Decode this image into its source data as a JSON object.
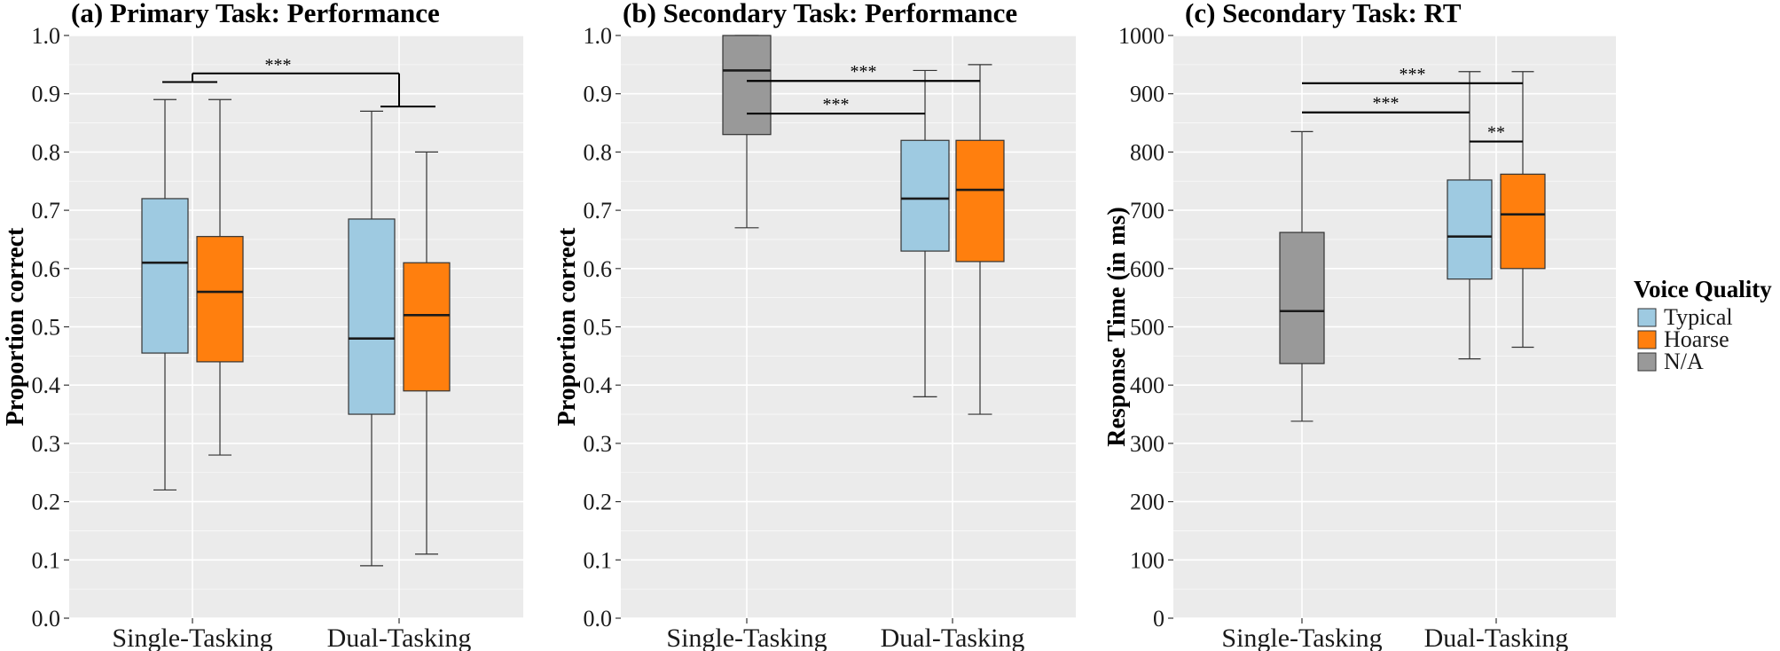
{
  "colors": {
    "Typical": "#9ecae1",
    "Hoarse": "#ff7f0e",
    "N/A": "#999999",
    "panel_bg": "#ebebeb",
    "grid": "#ffffff"
  },
  "legend": {
    "title": "Voice Quality",
    "items": [
      {
        "label": "Typical",
        "key": "Typical"
      },
      {
        "label": "Hoarse",
        "key": "Hoarse"
      },
      {
        "label": "N/A",
        "key": "N/A"
      }
    ],
    "position": "right"
  },
  "chart_data": [
    {
      "type": "boxplot",
      "title": "(a) Primary Task: Performance",
      "ylabel": "Proportion correct",
      "xlabel": "",
      "ylim": [
        0,
        1.0
      ],
      "yticks": [
        "0.0",
        "0.1",
        "0.2",
        "0.3",
        "0.4",
        "0.5",
        "0.6",
        "0.7",
        "0.8",
        "0.9",
        "1.0"
      ],
      "categories": [
        "Single-Tasking",
        "Dual-Tasking"
      ],
      "boxes": [
        {
          "category": "Single-Tasking",
          "group": "Typical",
          "min": 0.22,
          "q1": 0.455,
          "median": 0.61,
          "q3": 0.72,
          "max": 0.89
        },
        {
          "category": "Single-Tasking",
          "group": "Hoarse",
          "min": 0.28,
          "q1": 0.44,
          "median": 0.56,
          "q3": 0.655,
          "max": 0.89
        },
        {
          "category": "Dual-Tasking",
          "group": "Typical",
          "min": 0.09,
          "q1": 0.35,
          "median": 0.48,
          "q3": 0.685,
          "max": 0.87
        },
        {
          "category": "Dual-Tasking",
          "group": "Hoarse",
          "min": 0.11,
          "q1": 0.39,
          "median": 0.52,
          "q3": 0.61,
          "max": 0.8
        }
      ],
      "significance": [
        {
          "label": "***",
          "type": "bracket",
          "from_category": "Single-Tasking",
          "to_category": "Dual-Tasking",
          "y": 0.935,
          "from_leg_y": 0.92,
          "to_leg_y": 0.878
        }
      ]
    },
    {
      "type": "boxplot",
      "title": "(b) Secondary Task: Performance",
      "ylabel": "Proportion correct",
      "xlabel": "",
      "ylim": [
        0,
        1.0
      ],
      "yticks": [
        "0.0",
        "0.1",
        "0.2",
        "0.3",
        "0.4",
        "0.5",
        "0.6",
        "0.7",
        "0.8",
        "0.9",
        "1.0"
      ],
      "categories": [
        "Single-Tasking",
        "Dual-Tasking"
      ],
      "boxes": [
        {
          "category": "Single-Tasking",
          "group": "N/A",
          "min": 0.67,
          "q1": 0.83,
          "median": 0.94,
          "q3": 1.0,
          "max": 1.0
        },
        {
          "category": "Dual-Tasking",
          "group": "Typical",
          "min": 0.38,
          "q1": 0.63,
          "median": 0.72,
          "q3": 0.82,
          "max": 0.94
        },
        {
          "category": "Dual-Tasking",
          "group": "Hoarse",
          "min": 0.35,
          "q1": 0.612,
          "median": 0.735,
          "q3": 0.82,
          "max": 0.95
        }
      ],
      "significance": [
        {
          "label": "***",
          "type": "line",
          "from_category": "Single-Tasking",
          "to": "Dual-Tasking Hoarse",
          "y": 0.922
        },
        {
          "label": "***",
          "type": "line",
          "from_category": "Single-Tasking",
          "to": "Dual-Tasking Typical",
          "y": 0.866
        }
      ]
    },
    {
      "type": "boxplot",
      "title": "(c) Secondary Task: RT",
      "ylabel": "Response Time (in ms)",
      "xlabel": "",
      "ylim": [
        0,
        1000
      ],
      "yticks": [
        "0",
        "100",
        "200",
        "300",
        "400",
        "500",
        "600",
        "700",
        "800",
        "900",
        "1000"
      ],
      "categories": [
        "Single-Tasking",
        "Dual-Tasking"
      ],
      "boxes": [
        {
          "category": "Single-Tasking",
          "group": "N/A",
          "min": 338,
          "q1": 437,
          "median": 527,
          "q3": 662,
          "max": 835
        },
        {
          "category": "Dual-Tasking",
          "group": "Typical",
          "min": 445,
          "q1": 582,
          "median": 655,
          "q3": 752,
          "max": 938
        },
        {
          "category": "Dual-Tasking",
          "group": "Hoarse",
          "min": 465,
          "q1": 600,
          "median": 693,
          "q3": 762,
          "max": 938
        }
      ],
      "significance": [
        {
          "label": "***",
          "type": "line",
          "from_category": "Single-Tasking",
          "to": "Dual-Tasking Hoarse",
          "y": 918
        },
        {
          "label": "***",
          "type": "line",
          "from_category": "Single-Tasking",
          "to": "Dual-Tasking Typical",
          "y": 868
        },
        {
          "label": "**",
          "type": "line",
          "from": "Dual-Tasking Typical",
          "to": "Dual-Tasking Hoarse",
          "y": 818
        }
      ]
    }
  ]
}
